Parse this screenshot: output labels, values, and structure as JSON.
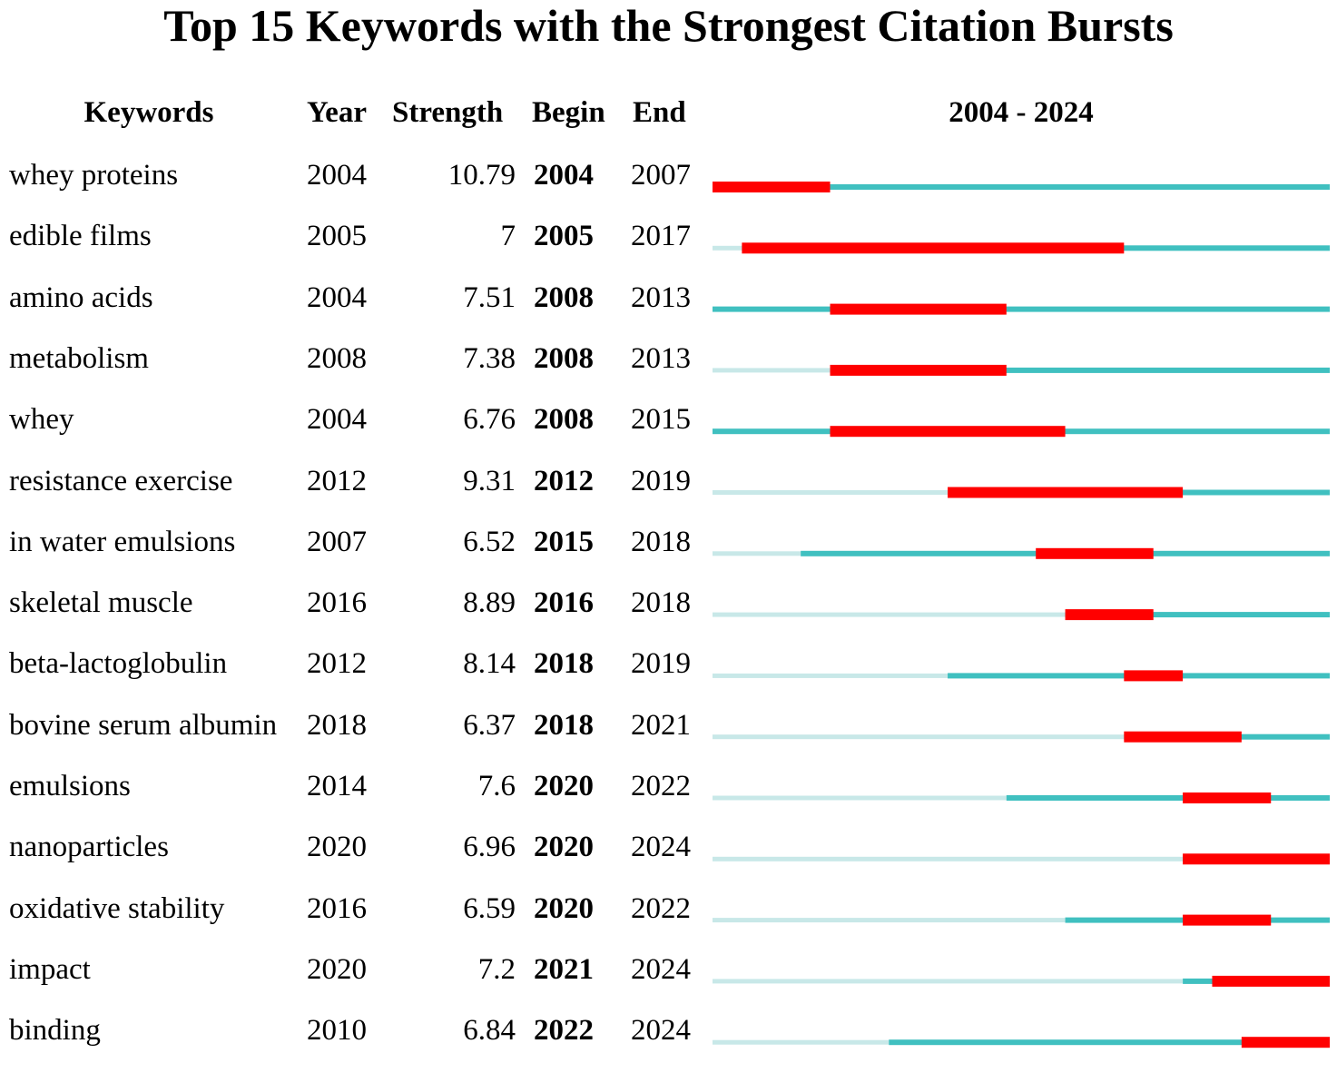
{
  "chart_data": {
    "type": "table",
    "title": "Top 15 Keywords with the Strongest Citation Bursts",
    "columns": [
      "Keywords",
      "Year",
      "Strength",
      "Begin",
      "End",
      "2004 - 2024"
    ],
    "range_start": 2004,
    "range_end": 2024,
    "range_label": "2004 - 2024",
    "colors": {
      "burst": "#ff0000",
      "active": "#40c0c0",
      "inactive": "#c8e8e8"
    },
    "rows": [
      {
        "keyword": "whey proteins",
        "year": "2004",
        "strength": "10.79",
        "begin": "2004",
        "end": "2007"
      },
      {
        "keyword": "edible films",
        "year": "2005",
        "strength": "7",
        "begin": "2005",
        "end": "2017"
      },
      {
        "keyword": "amino acids",
        "year": "2004",
        "strength": "7.51",
        "begin": "2008",
        "end": "2013"
      },
      {
        "keyword": "metabolism",
        "year": "2008",
        "strength": "7.38",
        "begin": "2008",
        "end": "2013"
      },
      {
        "keyword": "whey",
        "year": "2004",
        "strength": "6.76",
        "begin": "2008",
        "end": "2015"
      },
      {
        "keyword": "resistance exercise",
        "year": "2012",
        "strength": "9.31",
        "begin": "2012",
        "end": "2019"
      },
      {
        "keyword": "in water emulsions",
        "year": "2007",
        "strength": "6.52",
        "begin": "2015",
        "end": "2018"
      },
      {
        "keyword": "skeletal muscle",
        "year": "2016",
        "strength": "8.89",
        "begin": "2016",
        "end": "2018"
      },
      {
        "keyword": "beta-lactoglobulin",
        "year": "2012",
        "strength": "8.14",
        "begin": "2018",
        "end": "2019"
      },
      {
        "keyword": "bovine serum albumin",
        "year": "2018",
        "strength": "6.37",
        "begin": "2018",
        "end": "2021"
      },
      {
        "keyword": "emulsions",
        "year": "2014",
        "strength": "7.6",
        "begin": "2020",
        "end": "2022"
      },
      {
        "keyword": "nanoparticles",
        "year": "2020",
        "strength": "6.96",
        "begin": "2020",
        "end": "2024"
      },
      {
        "keyword": "oxidative stability",
        "year": "2016",
        "strength": "6.59",
        "begin": "2020",
        "end": "2022"
      },
      {
        "keyword": "impact",
        "year": "2020",
        "strength": "7.2",
        "begin": "2021",
        "end": "2024"
      },
      {
        "keyword": "binding",
        "year": "2010",
        "strength": "6.84",
        "begin": "2022",
        "end": "2024"
      }
    ]
  }
}
